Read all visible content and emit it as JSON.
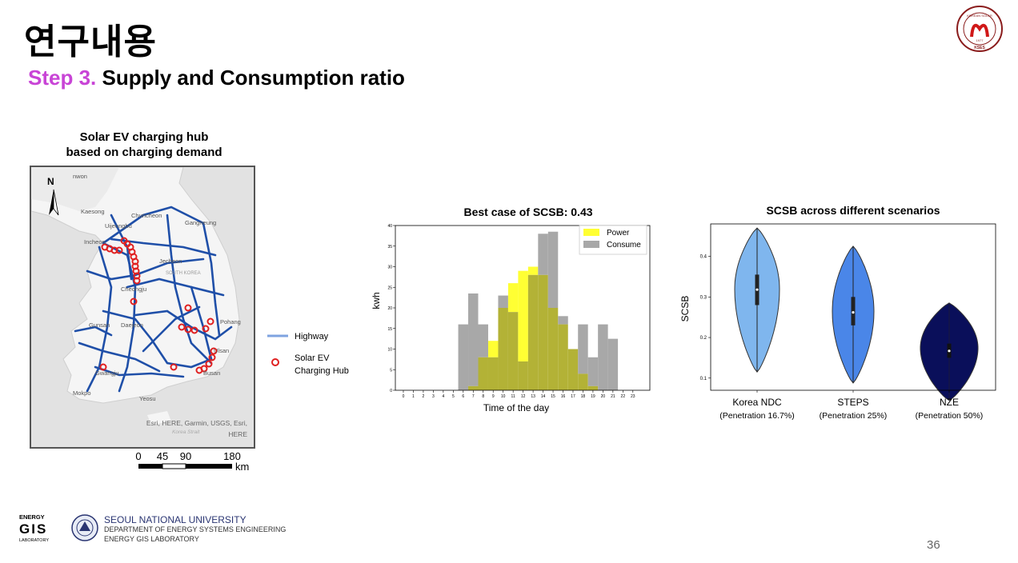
{
  "header": {
    "title": "연구내용",
    "step_label": "Step 3.",
    "step_text": "Supply and Consumption ratio"
  },
  "logo": {
    "name": "kses-logo",
    "year": "1977",
    "abbr": "KSES"
  },
  "map": {
    "title_line1": "Solar EV charging hub",
    "title_line2": "based on charging demand",
    "north": "N",
    "places": [
      {
        "name": "Kaesong"
      },
      {
        "name": "Chuncheon"
      },
      {
        "name": "Uijeongbu"
      },
      {
        "name": "Gangneung"
      },
      {
        "name": "Incheon"
      },
      {
        "name": "Jecheon"
      },
      {
        "name": "SOUTH KOREA"
      },
      {
        "name": "Cheongju"
      },
      {
        "name": "Daejeon"
      },
      {
        "name": "Gunsan"
      },
      {
        "name": "Pohang"
      },
      {
        "name": "Gwangju"
      },
      {
        "name": "Ulsan"
      },
      {
        "name": "Busan"
      },
      {
        "name": "Mokpo"
      },
      {
        "name": "Yeosu"
      },
      {
        "name": "Korea Strait"
      },
      {
        "name": "nwon"
      }
    ],
    "attribution_line1": "Esri, HERE, Garmin, USGS, Esri,",
    "attribution_line2": "HERE",
    "scale_ticks": [
      "0",
      "45",
      "90",
      "180"
    ],
    "scale_unit": "km",
    "legend": {
      "highway": "Highway",
      "hub_line1": "Solar EV",
      "hub_line2": "Charging Hub"
    },
    "colors": {
      "highway": "#1f4fa8",
      "hub": "#e02020",
      "land": "#f3f3f3",
      "sea": "#e2e2e2"
    }
  },
  "chart_data": [
    {
      "type": "bar",
      "title": "Best case of SCSB: 0.43",
      "xlabel": "Time of the day",
      "ylabel": "kwh",
      "categories": [
        "0",
        "1",
        "2",
        "3",
        "4",
        "5",
        "6",
        "7",
        "8",
        "9",
        "10",
        "11",
        "12",
        "13",
        "14",
        "15",
        "16",
        "17",
        "18",
        "19",
        "20",
        "21",
        "22",
        "23"
      ],
      "ylim": [
        0,
        40
      ],
      "yticks": [
        "0",
        "5",
        "10",
        "15",
        "20",
        "25",
        "30",
        "35",
        "40"
      ],
      "legend_position": "top-right",
      "series": [
        {
          "name": "Power",
          "color": "#ffff33",
          "values": [
            0,
            0,
            0,
            0,
            0,
            0,
            0,
            1,
            8,
            12,
            20,
            26,
            29,
            30,
            28,
            20,
            16,
            10,
            4,
            1,
            0,
            0,
            0,
            0
          ]
        },
        {
          "name": "Consume",
          "color": "#a8a8a8",
          "values": [
            0,
            0,
            0,
            0,
            0,
            0,
            16,
            23.5,
            16,
            8,
            23,
            19,
            7,
            28,
            38,
            38.5,
            18,
            10,
            16,
            8,
            16,
            12.5,
            0,
            0
          ]
        }
      ],
      "overlap_color": "#b3b236"
    },
    {
      "type": "violin",
      "title": "SCSB across different scenarios",
      "ylabel": "SCSB",
      "yticks": [
        "0.1",
        "0.2",
        "0.3",
        "0.4"
      ],
      "ylim": [
        0.07,
        0.48
      ],
      "categories": [
        "Korea NDC",
        "STEPS",
        "NZE"
      ],
      "sublabels": [
        "(Penetration 16.7%)",
        "(Penetration 25%)",
        "(Penetration 50%)"
      ],
      "colors": [
        "#7fb6ee",
        "#4a86e8",
        "#0a0f5a"
      ],
      "violins": [
        {
          "min": 0.115,
          "q1": 0.28,
          "median": 0.318,
          "q3": 0.355,
          "max": 0.47,
          "mode": 0.32
        },
        {
          "min": 0.088,
          "q1": 0.23,
          "median": 0.262,
          "q3": 0.3,
          "max": 0.425,
          "mode": 0.265
        },
        {
          "min": 0.045,
          "q1": 0.15,
          "median": 0.167,
          "q3": 0.185,
          "max": 0.285,
          "mode": 0.175
        }
      ]
    }
  ],
  "footer": {
    "lab_logo_line1": "ENERGY",
    "lab_logo_line2": "GIS",
    "lab_logo_line3": "LABORATORY",
    "university": "SEOUL NATIONAL UNIVERSITY",
    "department": "DEPARTMENT OF ENERGY SYSTEMS ENGINEERING",
    "lab": "ENERGY GIS LABORATORY"
  },
  "page_number": "36"
}
